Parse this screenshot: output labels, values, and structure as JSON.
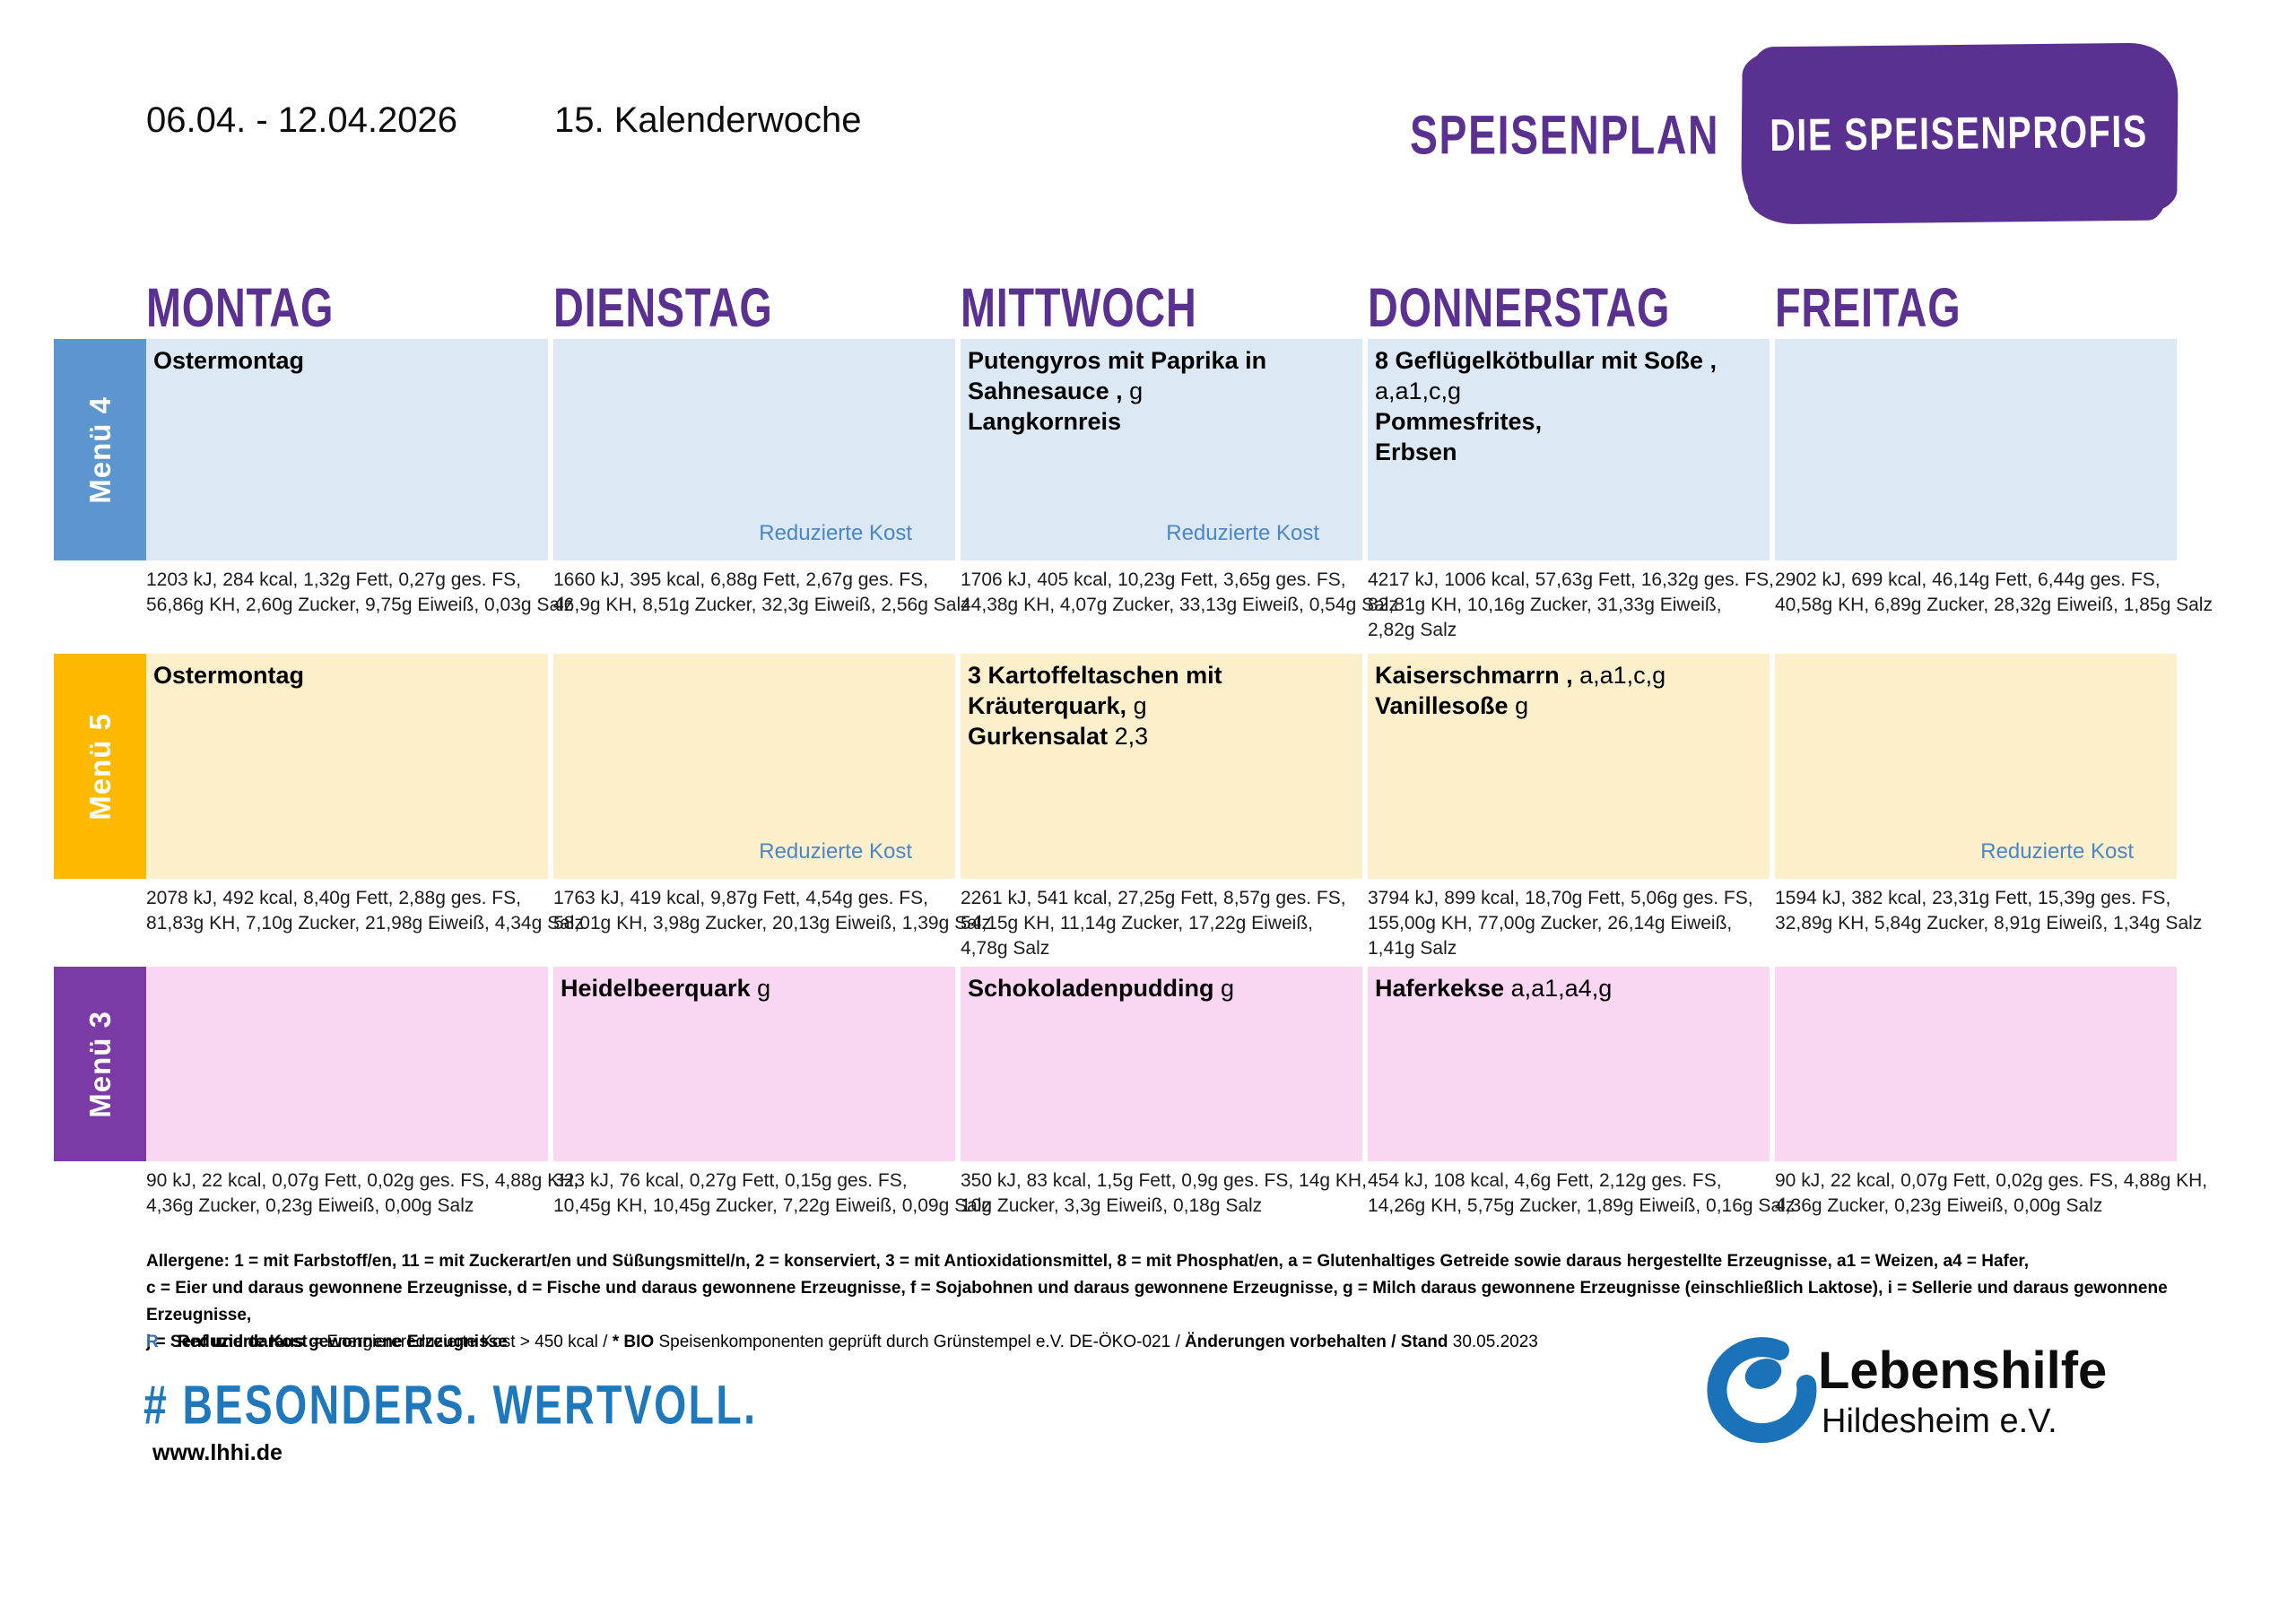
{
  "header": {
    "date_range": "06.04. - 12.04.2026",
    "week": "15. Kalenderwoche",
    "plan_title": "SPEISENPLAN",
    "brand": "DIE SPEISENPROFIS"
  },
  "days": [
    "MONTAG",
    "DIENSTAG",
    "MITTWOCH",
    "DONNERSTAG",
    "FREITAG"
  ],
  "reduced_label": "Reduzierte Kost",
  "colors": {
    "title_purple": "#5a3191",
    "badge_purple": "#5a3191",
    "day_purple": "#5a3191",
    "reduced_blue": "#4a86c8",
    "hashtag_blue": "#1f78bb",
    "org_blue": "#1a72b8",
    "legend_r_blue": "#2f6fb7"
  },
  "menus": [
    {
      "label": "Menü 4",
      "rail_color": "#5d95cf",
      "cell_color": "#dce8f3",
      "cells": [
        {
          "lines": [
            {
              "b": "Ostermontag",
              "n": ""
            }
          ],
          "reduced": false,
          "nutrition": [
            "1203 kJ, 284 kcal, 1,32g Fett, 0,27g ges. FS,",
            "56,86g KH, 2,60g Zucker, 9,75g Eiweiß, 0,03g Salz"
          ]
        },
        {
          "lines": [],
          "reduced": true,
          "nutrition": [
            "1660 kJ, 395 kcal, 6,88g Fett, 2,67g ges. FS,",
            "46,9g KH, 8,51g Zucker, 32,3g Eiweiß, 2,56g Salz"
          ]
        },
        {
          "lines": [
            {
              "b": "Putengyros mit Paprika in",
              "n": ""
            },
            {
              "b": "Sahnesauce ,",
              "n": " g"
            },
            {
              "b": "Langkornreis",
              "n": ""
            }
          ],
          "reduced": true,
          "nutrition": [
            "1706 kJ, 405 kcal, 10,23g Fett, 3,65g ges. FS,",
            "44,38g KH, 4,07g Zucker, 33,13g Eiweiß, 0,54g Salz"
          ]
        },
        {
          "lines": [
            {
              "b": "8 Geflügelkötbullar mit Soße ,",
              "n": ""
            },
            {
              "b": "",
              "n": "a,a1,c,g"
            },
            {
              "b": "Pommesfrites,",
              "n": ""
            },
            {
              "b": "Erbsen",
              "n": ""
            }
          ],
          "reduced": false,
          "nutrition": [
            "4217 kJ, 1006 kcal, 57,63g Fett, 16,32g ges. FS,",
            "82,81g KH, 10,16g Zucker, 31,33g Eiweiß,",
            "2,82g Salz"
          ]
        },
        {
          "lines": [],
          "reduced": false,
          "nutrition": [
            "2902 kJ, 699 kcal, 46,14g Fett, 6,44g ges. FS,",
            "40,58g KH, 6,89g Zucker, 28,32g Eiweiß, 1,85g Salz"
          ]
        }
      ]
    },
    {
      "label": "Menü 5",
      "rail_color": "#fcb900",
      "cell_color": "#fcf0cc",
      "cells": [
        {
          "lines": [
            {
              "b": "Ostermontag",
              "n": ""
            }
          ],
          "reduced": false,
          "nutrition": [
            "2078 kJ, 492 kcal, 8,40g Fett, 2,88g ges. FS,",
            "81,83g KH, 7,10g Zucker, 21,98g Eiweiß, 4,34g Salz"
          ]
        },
        {
          "lines": [],
          "reduced": true,
          "nutrition": [
            "1763 kJ, 419 kcal, 9,87g Fett, 4,54g ges. FS,",
            "58,01g KH, 3,98g Zucker, 20,13g Eiweiß, 1,39g Salz"
          ]
        },
        {
          "lines": [
            {
              "b": "3 Kartoffeltaschen mit",
              "n": ""
            },
            {
              "b": "Kräuterquark,",
              "n": " g"
            },
            {
              "b": "Gurkensalat",
              "n": " 2,3"
            }
          ],
          "reduced": false,
          "nutrition": [
            "2261 kJ, 541 kcal, 27,25g Fett, 8,57g ges. FS,",
            "54,15g KH, 11,14g Zucker, 17,22g Eiweiß,",
            "4,78g Salz"
          ]
        },
        {
          "lines": [
            {
              "b": "Kaiserschmarrn ,",
              "n": " a,a1,c,g"
            },
            {
              "b": "Vanillesoße",
              "n": " g"
            }
          ],
          "reduced": false,
          "nutrition": [
            "3794 kJ, 899 kcal, 18,70g Fett, 5,06g ges. FS,",
            "155,00g KH, 77,00g Zucker, 26,14g Eiweiß,",
            "1,41g Salz"
          ]
        },
        {
          "lines": [],
          "reduced": true,
          "nutrition": [
            "1594 kJ, 382 kcal, 23,31g Fett, 15,39g ges. FS,",
            "32,89g KH, 5,84g Zucker, 8,91g Eiweiß, 1,34g Salz"
          ]
        }
      ]
    },
    {
      "label": "Menü 3",
      "rail_color": "#7b3aa5",
      "cell_color": "#f9d7f3",
      "cells": [
        {
          "lines": [],
          "reduced": false,
          "nutrition": [
            "90 kJ, 22 kcal, 0,07g Fett, 0,02g ges. FS, 4,88g KH,",
            "4,36g Zucker, 0,23g Eiweiß, 0,00g Salz"
          ]
        },
        {
          "lines": [
            {
              "b": "Heidelbeerquark",
              "n": " g"
            }
          ],
          "reduced": false,
          "nutrition": [
            "323 kJ, 76 kcal, 0,27g Fett, 0,15g ges. FS,",
            "10,45g KH, 10,45g Zucker, 7,22g Eiweiß, 0,09g Salz"
          ]
        },
        {
          "lines": [
            {
              "b": "Schokoladenpudding",
              "n": " g"
            }
          ],
          "reduced": false,
          "nutrition": [
            "350 kJ, 83 kcal, 1,5g Fett, 0,9g ges. FS, 14g KH,",
            "10g Zucker, 3,3g Eiweiß, 0,18g Salz"
          ]
        },
        {
          "lines": [
            {
              "b": "Haferkekse",
              "n": " a,a1,a4,g"
            }
          ],
          "reduced": false,
          "nutrition": [
            "454 kJ, 108 kcal, 4,6g Fett, 2,12g ges. FS,",
            "14,26g KH, 5,75g Zucker, 1,89g Eiweiß, 0,16g Salz"
          ]
        },
        {
          "lines": [],
          "reduced": false,
          "nutrition": [
            "90 kJ, 22 kcal, 0,07g Fett, 0,02g ges. FS, 4,88g KH,",
            "4,36g Zucker, 0,23g Eiweiß, 0,00g Salz"
          ]
        }
      ]
    }
  ],
  "footer": {
    "allergens": [
      "Allergene: 1 = mit Farbstoff/en, 11 = mit Zuckerart/en und Süßungsmittel/n, 2 = konserviert, 3 = mit Antioxidationsmittel, 8 = mit Phosphat/en, a = Glutenhaltiges Getreide sowie daraus hergestellte Erzeugnisse, a1 = Weizen, a4 = Hafer,",
      "c = Eier und daraus gewonnene Erzeugnisse, d = Fische und daraus gewonnene Erzeugnisse, f = Sojabohnen und daraus gewonnene Erzeugnisse, g = Milch daraus gewonnene Erzeugnisse (einschließlich Laktose), i = Sellerie und daraus gewonnene Erzeugnisse,",
      "j = Senf und daraus gewonnene Erzeugnisse"
    ],
    "legend": {
      "r": "R",
      "reduced_bold": "Reduzierte Kost",
      "reduced_rest": " = Energierereduzierte Kost > 450 kcal / ",
      "bio_bold": "* BIO",
      "bio_rest": " Speisenkomponenten geprüft durch Grünstempel e.V. DE-ÖKO-021 / ",
      "changes_bold": "Änderungen vorbehalten / Stand",
      "changes_date": " 30.05.2023"
    },
    "hashtag": "# BESONDERS. WERTVOLL.",
    "website": "www.lhhi.de",
    "org_name": "Lebenshilfe",
    "org_sub": "Hildesheim e.V."
  }
}
